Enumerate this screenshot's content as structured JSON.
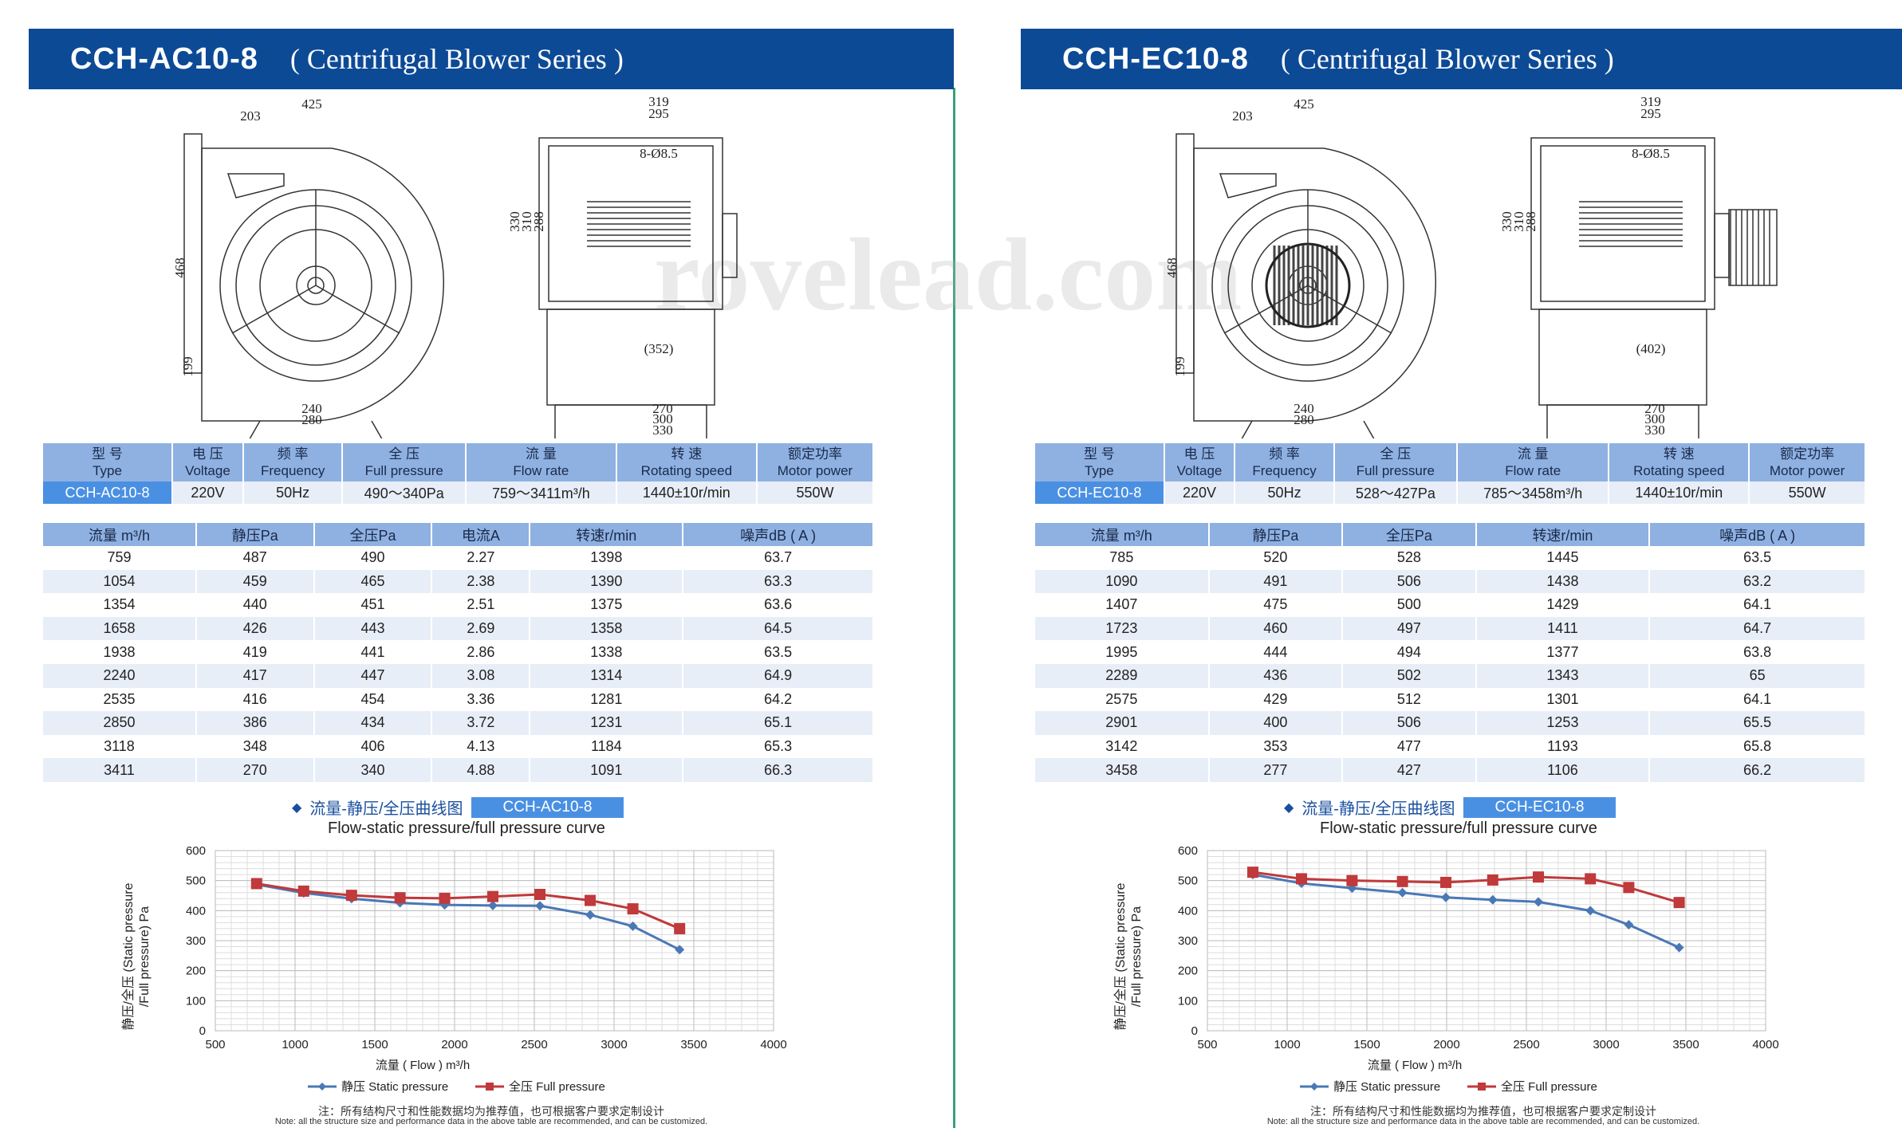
{
  "panels": [
    {
      "model": "CCH-AC10-8",
      "series": "( Centrifugal Blower Series )",
      "drawing": {
        "dims_front": [
          "425",
          "203",
          "468",
          "199",
          "240",
          "280"
        ],
        "dims_side": [
          "319",
          "295",
          "8-Ø8.5",
          "330",
          "310",
          "288",
          "(352)",
          "270",
          "300",
          "330"
        ]
      },
      "spec": {
        "headers": [
          [
            "型 号",
            "Type"
          ],
          [
            "电 压",
            "Voltage"
          ],
          [
            "频 率",
            "Frequency"
          ],
          [
            "全 压",
            "Full pressure"
          ],
          [
            "流 量",
            "Flow rate"
          ],
          [
            "转 速",
            "Rotating speed"
          ],
          [
            "额定功率",
            "Motor power"
          ]
        ],
        "values": [
          "CCH-AC10-8",
          "220V",
          "50Hz",
          "490～340Pa",
          "759～3411m³/h",
          "1440±10r/min",
          "550W"
        ]
      },
      "perf": {
        "headers": [
          "流量 m³/h",
          "静压Pa",
          "全压Pa",
          "电流A",
          "转速r/min",
          "噪声dB ( A )"
        ],
        "rows": [
          [
            "759",
            "487",
            "490",
            "2.27",
            "1398",
            "63.7"
          ],
          [
            "1054",
            "459",
            "465",
            "2.38",
            "1390",
            "63.3"
          ],
          [
            "1354",
            "440",
            "451",
            "2.51",
            "1375",
            "63.6"
          ],
          [
            "1658",
            "426",
            "443",
            "2.69",
            "1358",
            "64.5"
          ],
          [
            "1938",
            "419",
            "441",
            "2.86",
            "1338",
            "63.5"
          ],
          [
            "2240",
            "417",
            "447",
            "3.08",
            "1314",
            "64.9"
          ],
          [
            "2535",
            "416",
            "454",
            "3.36",
            "1281",
            "64.2"
          ],
          [
            "2850",
            "386",
            "434",
            "3.72",
            "1231",
            "65.1"
          ],
          [
            "3118",
            "348",
            "406",
            "4.13",
            "1184",
            "65.3"
          ],
          [
            "3411",
            "270",
            "340",
            "4.88",
            "1091",
            "66.3"
          ]
        ]
      },
      "curve_title": "流量-静压/全压曲线图",
      "curve_subtitle": "Flow-static pressure/full pressure curve",
      "chart_data": {
        "type": "line",
        "xlabel": "流量 ( Flow ) m³/h",
        "ylabel_line1": "静压/全压 (Static pressure",
        "ylabel_line2": "/Full pressure) Pa",
        "xlim": [
          500,
          4000
        ],
        "ylim": [
          0,
          600
        ],
        "xticks": [
          500,
          1000,
          1500,
          2000,
          2500,
          3000,
          3500,
          4000
        ],
        "yticks": [
          0,
          100,
          200,
          300,
          400,
          500,
          600
        ],
        "legend": "bottom",
        "series": [
          {
            "name": "静压 Static pressure",
            "color": "#4a78b5",
            "marker": "diamond",
            "x": [
              759,
              1054,
              1354,
              1658,
              1938,
              2240,
              2535,
              2850,
              3118,
              3411
            ],
            "y": [
              487,
              459,
              440,
              426,
              419,
              417,
              416,
              386,
              348,
              270
            ]
          },
          {
            "name": "全压 Full pressure",
            "color": "#c0393b",
            "marker": "square",
            "x": [
              759,
              1054,
              1354,
              1658,
              1938,
              2240,
              2535,
              2850,
              3118,
              3411
            ],
            "y": [
              490,
              465,
              451,
              443,
              441,
              447,
              454,
              434,
              406,
              340
            ]
          }
        ]
      },
      "note_cn": "注：所有结构尺寸和性能数据均为推荐值，也可根据客户要求定制设计",
      "note_en": "Note: all the structure size and performance data in the above table are recommended, and can be customized."
    },
    {
      "model": "CCH-EC10-8",
      "series": "( Centrifugal Blower Series )",
      "drawing": {
        "dims_front": [
          "425",
          "203",
          "468",
          "199",
          "240",
          "280"
        ],
        "dims_side": [
          "319",
          "295",
          "8-Ø8.5",
          "330",
          "310",
          "288",
          "(402)",
          "270",
          "300",
          "330"
        ]
      },
      "spec": {
        "headers": [
          [
            "型 号",
            "Type"
          ],
          [
            "电 压",
            "Voltage"
          ],
          [
            "频 率",
            "Frequency"
          ],
          [
            "全 压",
            "Full pressure"
          ],
          [
            "流 量",
            "Flow rate"
          ],
          [
            "转 速",
            "Rotating speed"
          ],
          [
            "额定功率",
            "Motor power"
          ]
        ],
        "values": [
          "CCH-EC10-8",
          "220V",
          "50Hz",
          "528～427Pa",
          "785～3458m³/h",
          "1440±10r/min",
          "550W"
        ]
      },
      "perf": {
        "headers": [
          "流量 m³/h",
          "静压Pa",
          "全压Pa",
          "转速r/min",
          "噪声dB ( A )"
        ],
        "rows": [
          [
            "785",
            "520",
            "528",
            "1445",
            "63.5"
          ],
          [
            "1090",
            "491",
            "506",
            "1438",
            "63.2"
          ],
          [
            "1407",
            "475",
            "500",
            "1429",
            "64.1"
          ],
          [
            "1723",
            "460",
            "497",
            "1411",
            "64.7"
          ],
          [
            "1995",
            "444",
            "494",
            "1377",
            "63.8"
          ],
          [
            "2289",
            "436",
            "502",
            "1343",
            "65"
          ],
          [
            "2575",
            "429",
            "512",
            "1301",
            "64.1"
          ],
          [
            "2901",
            "400",
            "506",
            "1253",
            "65.5"
          ],
          [
            "3142",
            "353",
            "477",
            "1193",
            "65.8"
          ],
          [
            "3458",
            "277",
            "427",
            "1106",
            "66.2"
          ]
        ]
      },
      "curve_title": "流量-静压/全压曲线图",
      "curve_subtitle": "Flow-static pressure/full pressure curve",
      "chart_data": {
        "type": "line",
        "xlabel": "流量 ( Flow ) m³/h",
        "ylabel_line1": "静压/全压 (Static pressure",
        "ylabel_line2": "/Full pressure) Pa",
        "xlim": [
          500,
          4000
        ],
        "ylim": [
          0,
          600
        ],
        "xticks": [
          500,
          1000,
          1500,
          2000,
          2500,
          3000,
          3500,
          4000
        ],
        "yticks": [
          0,
          100,
          200,
          300,
          400,
          500,
          600
        ],
        "legend": "bottom",
        "series": [
          {
            "name": "静压 Static pressure",
            "color": "#4a78b5",
            "marker": "diamond",
            "x": [
              785,
              1090,
              1407,
              1723,
              1995,
              2289,
              2575,
              2901,
              3142,
              3458
            ],
            "y": [
              520,
              491,
              475,
              460,
              444,
              436,
              429,
              400,
              353,
              277
            ]
          },
          {
            "name": "全压 Full pressure",
            "color": "#c0393b",
            "marker": "square",
            "x": [
              785,
              1090,
              1407,
              1723,
              1995,
              2289,
              2575,
              2901,
              3142,
              3458
            ],
            "y": [
              528,
              506,
              500,
              497,
              494,
              502,
              512,
              506,
              477,
              427
            ]
          }
        ]
      },
      "note_cn": "注：所有结构尺寸和性能数据均为推荐值，也可根据客户要求定制设计",
      "note_en": "Note: all the structure size and performance data in the above table are recommended, and can be customized."
    }
  ],
  "watermark": "rovelead.com"
}
